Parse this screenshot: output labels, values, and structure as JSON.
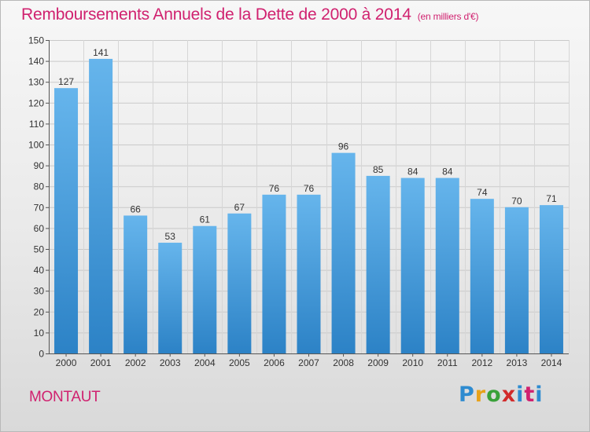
{
  "header": {
    "title": "Remboursements Annuels de la Dette de 2000 à 2014",
    "unit": "(en milliers d'€)"
  },
  "footer": {
    "commune": "MONTAUT",
    "brand": {
      "p": "P",
      "r": "r",
      "o": "o",
      "x": "x",
      "i": "i",
      "t": "t",
      "i2": "i"
    }
  },
  "colors": {
    "title": "#d0216f",
    "bar_top": "#66b5ec",
    "bar_bottom": "#2c82c6"
  },
  "chart_data": {
    "type": "bar",
    "title": "Remboursements Annuels de la Dette de 2000 à 2014",
    "categories": [
      "2000",
      "2001",
      "2002",
      "2003",
      "2004",
      "2005",
      "2006",
      "2007",
      "2008",
      "2009",
      "2010",
      "2011",
      "2012",
      "2013",
      "2014"
    ],
    "values": [
      127,
      141,
      66,
      53,
      61,
      67,
      76,
      76,
      96,
      85,
      84,
      84,
      74,
      70,
      71
    ],
    "data_labels": [
      "127",
      "141",
      "66",
      "53",
      "61",
      "67",
      "76",
      "76",
      "96",
      "85",
      "84",
      "84",
      "74",
      "70",
      "71"
    ],
    "yticks": [
      0,
      10,
      20,
      30,
      40,
      50,
      60,
      70,
      80,
      90,
      100,
      110,
      120,
      130,
      140,
      150
    ],
    "ylim": [
      0,
      150
    ],
    "grid": true,
    "legend": "none"
  }
}
